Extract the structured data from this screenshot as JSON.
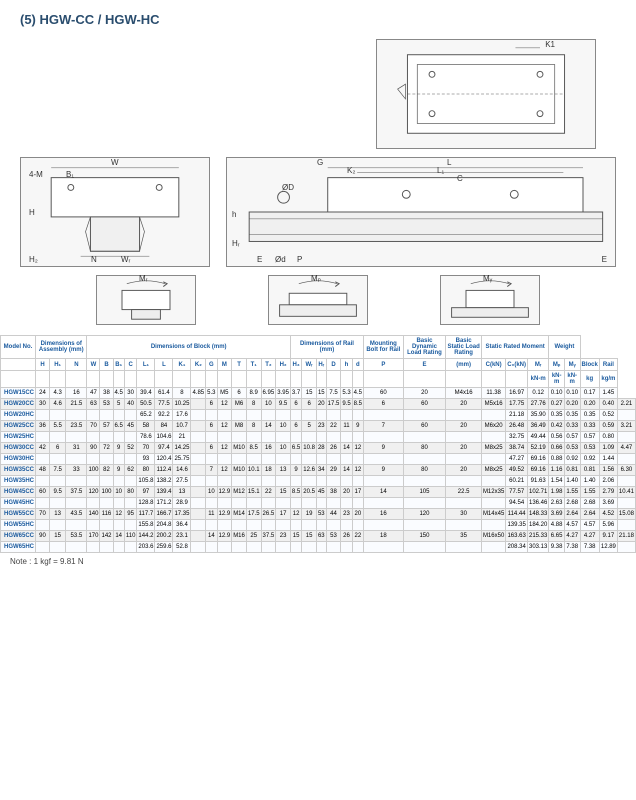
{
  "title": "(5) HGW-CC / HGW-HC",
  "note": "Note : 1 kgf = 9.81 N",
  "diagram_labels": {
    "k1": "K1",
    "w": "W",
    "b1": "B₁",
    "fourM": "4-M",
    "h": "H",
    "h2": "H₂",
    "n": "N",
    "wr": "Wᵣ",
    "g": "G",
    "l": "L",
    "k2": "K₂",
    "l1": "L₁",
    "c": "C",
    "od": "ØD",
    "h_small": "h",
    "hr": "Hᵣ",
    "od2": "Ød",
    "e": "E",
    "p": "P",
    "mr": "Mᵣ",
    "mp": "Mₚ",
    "my": "Mᵧ"
  },
  "header_groups": [
    {
      "label": "Model No.",
      "span": 1
    },
    {
      "label": "Dimensions of Assembly (mm)",
      "span": 3
    },
    {
      "label": "Dimensions of Block (mm)",
      "span": 14
    },
    {
      "label": "Dimensions of Rail (mm)",
      "span": 6
    },
    {
      "label": "Mounting Bolt for Rail",
      "span": 1
    },
    {
      "label": "Basic Dynamic Load Rating",
      "span": 1
    },
    {
      "label": "Basic Static Load Rating",
      "span": 1
    },
    {
      "label": "Static Rated Moment",
      "span": 3
    },
    {
      "label": "Weight",
      "span": 2
    }
  ],
  "sub_headers": [
    "",
    "H",
    "H₁",
    "N",
    "W",
    "B",
    "B₁",
    "C",
    "L₁",
    "L",
    "K₁",
    "K₂",
    "G",
    "M",
    "T",
    "T₁",
    "T₂",
    "H₂",
    "H₃",
    "Wᵣ",
    "Hᵣ",
    "D",
    "h",
    "d",
    "P",
    "E",
    "(mm)",
    "C(kN)",
    "C₀(kN)",
    "Mᵣ",
    "Mₚ",
    "Mᵧ",
    "Block",
    "Rail"
  ],
  "sub_units": [
    "",
    "",
    "",
    "",
    "",
    "",
    "",
    "",
    "",
    "",
    "",
    "",
    "",
    "",
    "",
    "",
    "",
    "",
    "",
    "",
    "",
    "",
    "",
    "",
    "",
    "",
    "",
    "",
    "",
    "kN-m",
    "kN-m",
    "kN-m",
    "kg",
    "kg/m"
  ],
  "rows": [
    {
      "model": "HGW15CC",
      "v": [
        "24",
        "4.3",
        "16",
        "47",
        "38",
        "4.5",
        "30",
        "39.4",
        "61.4",
        "8",
        "4.85",
        "5.3",
        "M5",
        "6",
        "8.9",
        "6.95",
        "3.95",
        "3.7",
        "15",
        "15",
        "7.5",
        "5.3",
        "4.5",
        "60",
        "20",
        "M4x16",
        "11.38",
        "16.97",
        "0.12",
        "0.10",
        "0.10",
        "0.17",
        "1.45"
      ]
    },
    {
      "model": "HGW20CC",
      "v": [
        "30",
        "4.6",
        "21.5",
        "63",
        "53",
        "5",
        "40",
        "50.5",
        "77.5",
        "10.25",
        "",
        "6",
        "12",
        "M6",
        "8",
        "10",
        "9.5",
        "6",
        "6",
        "20",
        "17.5",
        "9.5",
        "8.5",
        "6",
        "60",
        "20",
        "M5x16",
        "17.75",
        "27.76",
        "0.27",
        "0.20",
        "0.20",
        "0.40",
        "2.21"
      ],
      "rs2": true
    },
    {
      "model": "HGW20HC",
      "v": [
        "",
        "",
        "",
        "",
        "",
        "",
        "",
        "65.2",
        "92.2",
        "17.6",
        "",
        "",
        "",
        "",
        "",
        "",
        "",
        "",
        "",
        "",
        "",
        "",
        "",
        "",
        "",
        "",
        "",
        "21.18",
        "35.90",
        "0.35",
        "0.35",
        "0.35",
        "0.52",
        ""
      ]
    },
    {
      "model": "HGW25CC",
      "v": [
        "36",
        "5.5",
        "23.5",
        "70",
        "57",
        "6.5",
        "45",
        "58",
        "84",
        "10.7",
        "",
        "6",
        "12",
        "M8",
        "8",
        "14",
        "10",
        "6",
        "5",
        "23",
        "22",
        "11",
        "9",
        "7",
        "60",
        "20",
        "M6x20",
        "26.48",
        "36.49",
        "0.42",
        "0.33",
        "0.33",
        "0.59",
        "3.21"
      ],
      "rs2": true
    },
    {
      "model": "HGW25HC",
      "v": [
        "",
        "",
        "",
        "",
        "",
        "",
        "",
        "78.6",
        "104.6",
        "21",
        "",
        "",
        "",
        "",
        "",
        "",
        "",
        "",
        "",
        "",
        "",
        "",
        "",
        "",
        "",
        "",
        "",
        "32.75",
        "49.44",
        "0.56",
        "0.57",
        "0.57",
        "0.80",
        ""
      ]
    },
    {
      "model": "HGW30CC",
      "v": [
        "42",
        "6",
        "31",
        "90",
        "72",
        "9",
        "52",
        "70",
        "97.4",
        "14.25",
        "",
        "6",
        "12",
        "M10",
        "8.5",
        "16",
        "10",
        "6.5",
        "10.8",
        "28",
        "26",
        "14",
        "12",
        "9",
        "80",
        "20",
        "M8x25",
        "38.74",
        "52.19",
        "0.66",
        "0.53",
        "0.53",
        "1.09",
        "4.47"
      ],
      "rs2": true
    },
    {
      "model": "HGW30HC",
      "v": [
        "",
        "",
        "",
        "",
        "",
        "",
        "",
        "93",
        "120.4",
        "25.75",
        "",
        "",
        "",
        "",
        "",
        "",
        "",
        "",
        "",
        "",
        "",
        "",
        "",
        "",
        "",
        "",
        "",
        "47.27",
        "69.16",
        "0.88",
        "0.92",
        "0.92",
        "1.44",
        ""
      ]
    },
    {
      "model": "HGW35CC",
      "v": [
        "48",
        "7.5",
        "33",
        "100",
        "82",
        "9",
        "62",
        "80",
        "112.4",
        "14.6",
        "",
        "7",
        "12",
        "M10",
        "10.1",
        "18",
        "13",
        "9",
        "12.6",
        "34",
        "29",
        "14",
        "12",
        "9",
        "80",
        "20",
        "M8x25",
        "49.52",
        "69.16",
        "1.16",
        "0.81",
        "0.81",
        "1.56",
        "6.30"
      ],
      "rs2": true
    },
    {
      "model": "HGW35HC",
      "v": [
        "",
        "",
        "",
        "",
        "",
        "",
        "",
        "105.8",
        "138.2",
        "27.5",
        "",
        "",
        "",
        "",
        "",
        "",
        "",
        "",
        "",
        "",
        "",
        "",
        "",
        "",
        "",
        "",
        "",
        "60.21",
        "91.63",
        "1.54",
        "1.40",
        "1.40",
        "2.06",
        ""
      ]
    },
    {
      "model": "HGW45CC",
      "v": [
        "60",
        "9.5",
        "37.5",
        "120",
        "100",
        "10",
        "80",
        "97",
        "139.4",
        "13",
        "",
        "10",
        "12.9",
        "M12",
        "15.1",
        "22",
        "15",
        "8.5",
        "20.5",
        "45",
        "38",
        "20",
        "17",
        "14",
        "105",
        "22.5",
        "M12x35",
        "77.57",
        "102.71",
        "1.98",
        "1.55",
        "1.55",
        "2.79",
        "10.41"
      ],
      "rs2": true
    },
    {
      "model": "HGW45HC",
      "v": [
        "",
        "",
        "",
        "",
        "",
        "",
        "",
        "128.8",
        "171.2",
        "28.9",
        "",
        "",
        "",
        "",
        "",
        "",
        "",
        "",
        "",
        "",
        "",
        "",
        "",
        "",
        "",
        "",
        "",
        "94.54",
        "136.46",
        "2.63",
        "2.68",
        "2.68",
        "3.69",
        ""
      ]
    },
    {
      "model": "HGW55CC",
      "v": [
        "70",
        "13",
        "43.5",
        "140",
        "116",
        "12",
        "95",
        "117.7",
        "166.7",
        "17.35",
        "",
        "11",
        "12.9",
        "M14",
        "17.5",
        "26.5",
        "17",
        "12",
        "19",
        "53",
        "44",
        "23",
        "20",
        "16",
        "120",
        "30",
        "M14x45",
        "114.44",
        "148.33",
        "3.69",
        "2.64",
        "2.64",
        "4.52",
        "15.08"
      ],
      "rs2": true
    },
    {
      "model": "HGW55HC",
      "v": [
        "",
        "",
        "",
        "",
        "",
        "",
        "",
        "155.8",
        "204.8",
        "36.4",
        "",
        "",
        "",
        "",
        "",
        "",
        "",
        "",
        "",
        "",
        "",
        "",
        "",
        "",
        "",
        "",
        "",
        "139.35",
        "184.20",
        "4.88",
        "4.57",
        "4.57",
        "5.96",
        ""
      ]
    },
    {
      "model": "HGW65CC",
      "v": [
        "90",
        "15",
        "53.5",
        "170",
        "142",
        "14",
        "110",
        "144.2",
        "200.2",
        "23.1",
        "",
        "14",
        "12.9",
        "M16",
        "25",
        "37.5",
        "23",
        "15",
        "15",
        "63",
        "53",
        "26",
        "22",
        "18",
        "150",
        "35",
        "M16x50",
        "163.63",
        "215.33",
        "6.65",
        "4.27",
        "4.27",
        "9.17",
        "21.18"
      ],
      "rs2": true
    },
    {
      "model": "HGW65HC",
      "v": [
        "",
        "",
        "",
        "",
        "",
        "",
        "",
        "203.6",
        "259.6",
        "52.8",
        "",
        "",
        "",
        "",
        "",
        "",
        "",
        "",
        "",
        "",
        "",
        "",
        "",
        "",
        "",
        "",
        "",
        "208.34",
        "303.13",
        "9.38",
        "7.38",
        "7.38",
        "12.89",
        ""
      ]
    }
  ]
}
